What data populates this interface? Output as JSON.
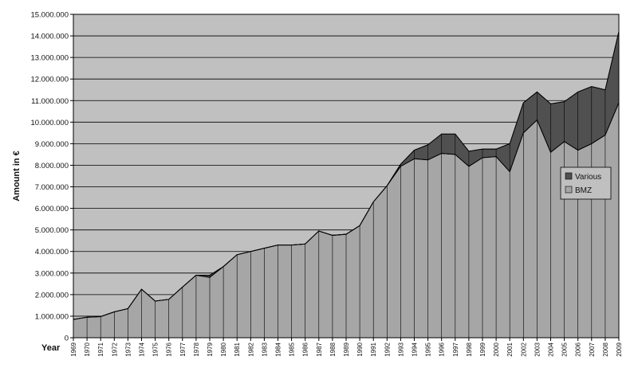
{
  "chart_data": {
    "type": "area",
    "stacked": true,
    "title": "",
    "xlabel": "Year",
    "ylabel": "Amount in €",
    "ylim": [
      0,
      15000000
    ],
    "y_ticks": [
      "0",
      "1.000.000",
      "2.000.000",
      "3.000.000",
      "4.000.000",
      "5.000.000",
      "6.000.000",
      "7.000.000",
      "8.000.000",
      "9.000.000",
      "10.000.000",
      "11.000.000",
      "12.000.000",
      "13.000.000",
      "14.000.000",
      "15.000.000"
    ],
    "grid": true,
    "legend_position": "right",
    "categories": [
      "1969",
      "1970",
      "1971",
      "1972",
      "1973",
      "1974",
      "1975",
      "1976",
      "1977",
      "1978",
      "1979",
      "1980",
      "1981",
      "1982",
      "1983",
      "1984",
      "1985",
      "1986",
      "1987",
      "1988",
      "1989",
      "1990",
      "1991",
      "1992",
      "1993",
      "1994",
      "1995",
      "1996",
      "1997",
      "1998",
      "1999",
      "2000",
      "2001",
      "2002",
      "2003",
      "2004",
      "2005",
      "2006",
      "2007",
      "2008",
      "2009"
    ],
    "series": [
      {
        "name": "BMZ",
        "color": "#a6a6a6",
        "values": [
          850000,
          950000,
          980000,
          1200000,
          1350000,
          2250000,
          1700000,
          1780000,
          2350000,
          2900000,
          2800000,
          3300000,
          3850000,
          4000000,
          4150000,
          4300000,
          4300000,
          4350000,
          4950000,
          4750000,
          4800000,
          5200000,
          6300000,
          7050000,
          7950000,
          8300000,
          8250000,
          8550000,
          8500000,
          7950000,
          8350000,
          8400000,
          7700000,
          9500000,
          10100000,
          8600000,
          9100000,
          8700000,
          9000000,
          9400000,
          10900000
        ]
      },
      {
        "name": "Various",
        "color": "#505050",
        "values": [
          0,
          0,
          0,
          0,
          0,
          0,
          0,
          0,
          0,
          0,
          100000,
          0,
          0,
          0,
          0,
          0,
          0,
          0,
          0,
          0,
          0,
          0,
          0,
          0,
          100000,
          400000,
          700000,
          900000,
          950000,
          700000,
          400000,
          350000,
          1300000,
          1400000,
          1300000,
          2250000,
          1850000,
          2700000,
          2650000,
          2100000,
          3300000
        ]
      }
    ]
  },
  "colors": {
    "plot_background": "#c0c0c0",
    "gridline": "#000000",
    "outline": "#000000"
  }
}
